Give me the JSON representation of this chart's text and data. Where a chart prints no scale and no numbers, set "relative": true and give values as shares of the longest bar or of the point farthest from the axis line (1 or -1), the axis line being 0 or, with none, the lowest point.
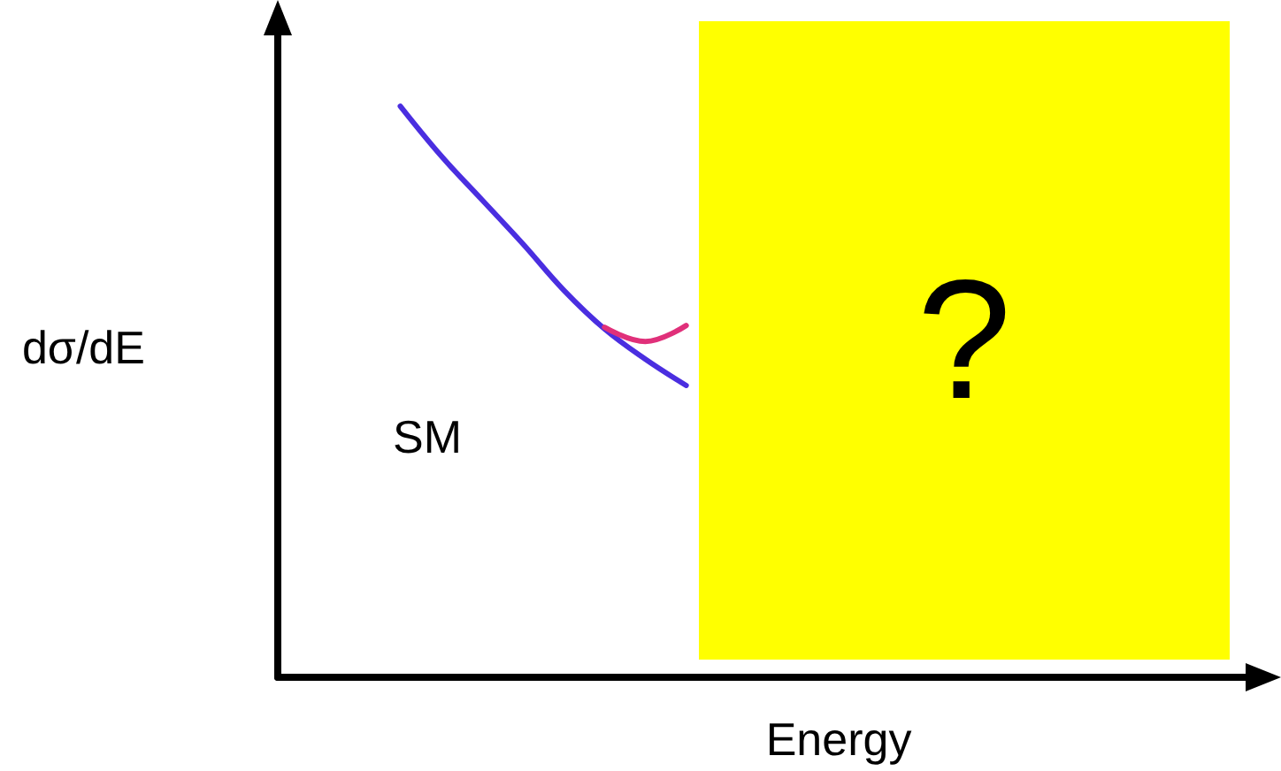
{
  "chart_data": {
    "type": "line",
    "relative": true,
    "xlabel": "Energy",
    "ylabel": "dσ/dE",
    "annotations": [
      "SM",
      "?"
    ],
    "categories": [
      null,
      null,
      null,
      null,
      null,
      null,
      null,
      null,
      null,
      null,
      null,
      null,
      null,
      null,
      null,
      null,
      null,
      null,
      null,
      null,
      null,
      null,
      null,
      null,
      null
    ],
    "series": [
      {
        "color": "#4a2ee0",
        "values": [
          null,
          null,
          null,
          1.0,
          0.913,
          0.836,
          0.759,
          0.678,
          0.61,
          0.557,
          0.511,
          null,
          null,
          null,
          null,
          null,
          null,
          null,
          null,
          null,
          null,
          null,
          null,
          null,
          null
        ]
      },
      {
        "color": "#e0307a",
        "values": [
          null,
          null,
          null,
          null,
          null,
          null,
          null,
          null,
          0.613,
          0.588,
          0.616,
          null,
          null,
          null,
          null,
          null,
          null,
          null,
          null,
          null,
          null,
          null,
          null,
          null,
          null
        ]
      }
    ],
    "marker": "none",
    "grid": false
  }
}
